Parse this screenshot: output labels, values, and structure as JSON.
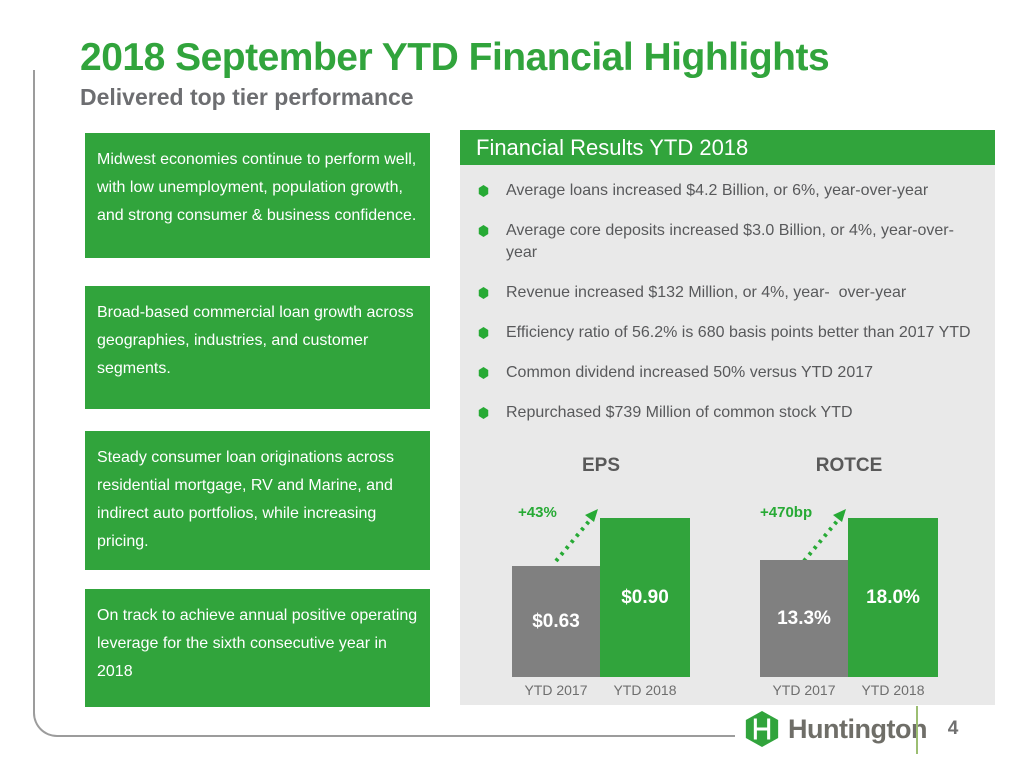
{
  "slide": {
    "title": "2018 September YTD Financial Highlights",
    "subtitle": "Delivered top tier performance"
  },
  "left_column": {
    "boxes": [
      "Midwest economies continue to perform well, with low unemployment, population growth, and strong consumer & business confidence.",
      "Broad-based commercial loan growth across geographies, industries, and customer segments.",
      "Steady consumer loan originations across residential mortgage, RV and Marine, and indirect auto portfolios, while increasing pricing.",
      "On track to achieve annual positive operating leverage for the sixth consecutive year in 2018"
    ]
  },
  "right_panel": {
    "header": "Financial Results YTD 2018",
    "bullets": [
      "Average loans increased $4.2 Billion, or 6%, year-over-year",
      "Average core deposits increased $3.0 Billion, or 4%, year-over-year",
      "Revenue increased $132 Million, or 4%, year-  over-year",
      "Efficiency ratio of 56.2% is 680 basis points better than 2017 YTD",
      "Common dividend increased 50% versus YTD 2017",
      "Repurchased $739 Million of common stock YTD"
    ]
  },
  "chart_data": [
    {
      "type": "bar",
      "title": "EPS",
      "categories": [
        "YTD 2017",
        "YTD 2018"
      ],
      "values": [
        0.63,
        0.9
      ],
      "value_labels": [
        "$0.63",
        "$0.90"
      ],
      "annotation": "+43%",
      "bar_colors": [
        "#808080",
        "#31A43C"
      ],
      "ylim": [
        0,
        0.9
      ],
      "grid": false,
      "legend": "none"
    },
    {
      "type": "bar",
      "title": "ROTCE",
      "categories": [
        "YTD 2017",
        "YTD 2018"
      ],
      "values": [
        13.3,
        18.0
      ],
      "value_labels": [
        "13.3%",
        "18.0%"
      ],
      "annotation": "+470bp",
      "bar_colors": [
        "#808080",
        "#31A43C"
      ],
      "ylim": [
        0,
        18.0
      ],
      "grid": false,
      "legend": "none"
    }
  ],
  "footer": {
    "brand": "Huntington",
    "page_number": "4"
  },
  "colors": {
    "green": "#31A43C",
    "bright_green": "#27AA35",
    "bar_gray": "#808080",
    "panel_bg": "#E9E9E9",
    "text_gray": "#58595B",
    "subtitle_gray": "#6D6E71",
    "border_gray": "#9C9C9C",
    "logo_text": "#6F6E68",
    "divider_green": "#9CBE72"
  }
}
